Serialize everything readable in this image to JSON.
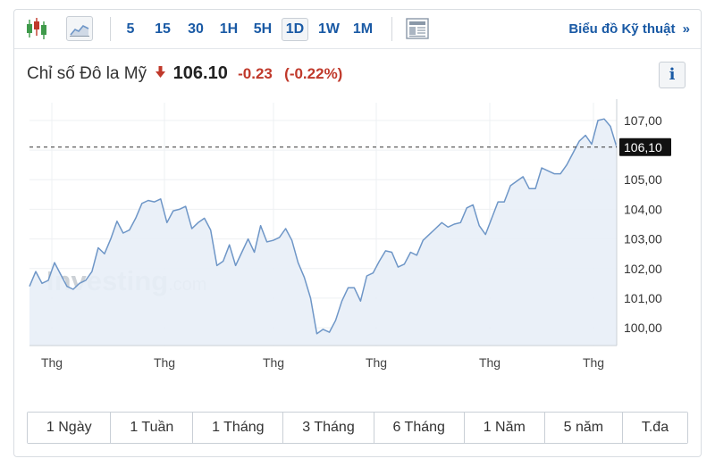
{
  "toolbar": {
    "intervals": [
      "5",
      "15",
      "30",
      "1H",
      "5H",
      "1D",
      "1W",
      "1M"
    ],
    "active_interval": "1D",
    "tech_chart_link": "Biểu đồ Kỹ thuật",
    "tech_chart_chevron": "»"
  },
  "quote": {
    "name": "Chỉ số Đô la Mỹ",
    "last": "106.10",
    "change": "-0.23",
    "change_pct": "(-0.22%)",
    "direction": "down",
    "down_color": "#c0392b"
  },
  "info_button": "i",
  "watermark": {
    "brand": "Investing",
    "suffix": ".com"
  },
  "chart_data": {
    "type": "area",
    "series": [
      {
        "values": [
          101.4,
          101.9,
          101.5,
          101.6,
          102.2,
          101.8,
          101.4,
          101.3,
          101.5,
          101.6,
          101.9,
          102.7,
          102.5,
          103.0,
          103.6,
          103.2,
          103.3,
          103.7,
          104.2,
          104.3,
          104.25,
          104.35,
          103.55,
          103.95,
          104.0,
          104.1,
          103.35,
          103.55,
          103.7,
          103.3,
          102.1,
          102.25,
          102.8,
          102.1,
          102.55,
          103.0,
          102.55,
          103.45,
          102.9,
          102.95,
          103.05,
          103.35,
          102.95,
          102.2,
          101.7,
          101.0,
          99.8,
          99.95,
          99.85,
          100.25,
          100.9,
          101.35,
          101.35,
          100.9,
          101.75,
          101.85,
          102.25,
          102.6,
          102.55,
          102.05,
          102.15,
          102.55,
          102.45,
          102.95,
          103.15,
          103.35,
          103.55,
          103.4,
          103.5,
          103.55,
          104.05,
          104.15,
          103.45,
          103.15,
          103.7,
          104.25,
          104.25,
          104.8,
          104.95,
          105.1,
          104.7,
          104.7,
          105.4,
          105.3,
          105.2,
          105.2,
          105.5,
          105.9,
          106.3,
          106.5,
          106.2,
          107.0,
          107.05,
          106.8,
          106.1
        ]
      }
    ],
    "x_tick_labels": [
      "Thg",
      "Thg",
      "Thg",
      "Thg",
      "Thg",
      "Thg"
    ],
    "y_ticks": [
      100.0,
      101.0,
      102.0,
      103.0,
      104.0,
      105.0,
      106.0,
      107.0
    ],
    "y_tick_labels": [
      "100,00",
      "101,00",
      "102,00",
      "103,00",
      "104,00",
      "105,00",
      "107,00"
    ],
    "ylim": [
      99.4,
      107.6
    ],
    "current_value": 106.1,
    "current_label": "106,10",
    "line_color": "#6e96c7",
    "fill_color": "#e8eef7",
    "grid": true
  },
  "ranges": [
    "1 Ngày",
    "1 Tuần",
    "1 Tháng",
    "3 Tháng",
    "6 Tháng",
    "1 Năm",
    "5 năm",
    "T.đa"
  ]
}
